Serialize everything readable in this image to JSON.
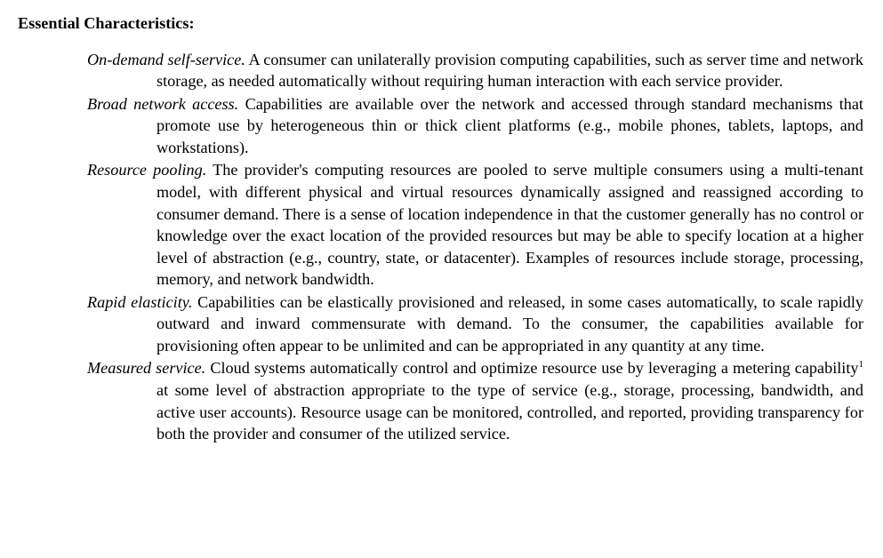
{
  "heading": "Essential Characteristics:",
  "items": [
    {
      "term": "On-demand self-service.",
      "body": " A consumer can unilaterally provision computing capabilities, such as server time and network storage, as needed automatically without requiring human interaction with each service provider."
    },
    {
      "term": "Broad network access.",
      "body": " Capabilities are available over the network and accessed through standard mechanisms that promote use by heterogeneous thin or thick client platforms (e.g., mobile phones, tablets, laptops, and workstations)."
    },
    {
      "term": "Resource pooling.",
      "body": " The provider's computing resources are pooled to serve multiple consumers using a multi-tenant model, with different physical and virtual resources dynamically assigned and reassigned according to consumer demand. There is a sense of location independence in that the customer generally has no control or knowledge over the exact location of the provided resources but may be able to specify location at a higher level of abstraction (e.g., country, state, or datacenter). Examples of resources include storage, processing, memory, and network bandwidth."
    },
    {
      "term": "Rapid elasticity.",
      "body": " Capabilities can be elastically provisioned and released, in some cases automatically, to scale rapidly outward and inward commensurate with demand. To the consumer, the capabilities available for provisioning often appear to be unlimited and can be appropriated in any quantity at any time."
    },
    {
      "term": "Measured service.",
      "body_pre": " Cloud systems automatically control and optimize resource use by leveraging a metering capability",
      "footnote_marker": "1",
      "body_post": " at some level of abstraction appropriate to the type of service (e.g., storage, processing, bandwidth, and active user accounts). Resource usage can be monitored, controlled, and reported, providing transparency for both the provider and consumer of the utilized service."
    }
  ]
}
